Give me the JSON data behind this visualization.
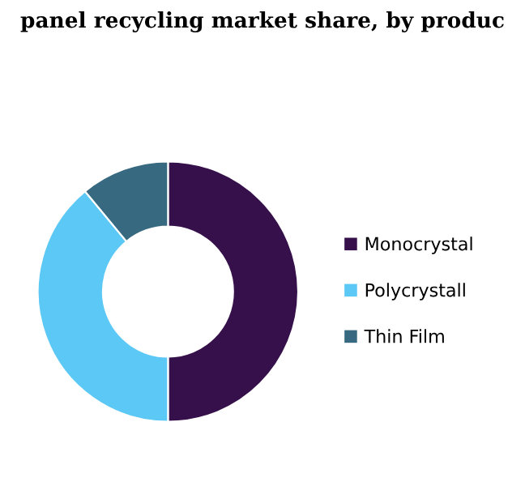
{
  "chart_data": {
    "type": "donut",
    "title": "panel recycling market share, by produc",
    "categories": [
      "Monocrystal",
      "Polycrystall",
      "Thin Film"
    ],
    "values": [
      50,
      39,
      11
    ],
    "colors": [
      "#35104a",
      "#5bc8f5",
      "#376a80"
    ],
    "legend": "right"
  }
}
